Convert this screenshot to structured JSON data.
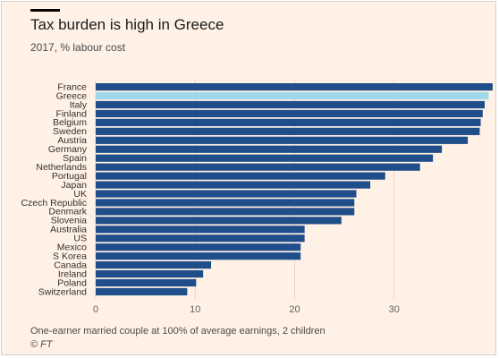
{
  "title": "Tax burden is high in Greece",
  "subtitle": "2017, % labour cost",
  "footnote": "One-earner married couple at 100% of average earnings, 2 children",
  "source": "© FT",
  "colors": {
    "background": "#fff1e5",
    "bar": "#1f4e8a",
    "highlight": "#9fd8e8",
    "gridline": "#e3d7cc"
  },
  "chart_data": {
    "type": "bar",
    "orientation": "horizontal",
    "title": "Tax burden is high in Greece",
    "subtitle": "2017, % labour cost",
    "highlight": "Greece",
    "categories": [
      "France",
      "Greece",
      "Italy",
      "Finland",
      "Belgium",
      "Sweden",
      "Austria",
      "Germany",
      "Spain",
      "Netherlands",
      "Portugal",
      "Japan",
      "UK",
      "Czech Republic",
      "Denmark",
      "Slovenia",
      "Australia",
      "US",
      "Mexico",
      "S Korea",
      "Canada",
      "Ireland",
      "Poland",
      "Switzerland"
    ],
    "values": [
      39.9,
      39.5,
      39.1,
      38.9,
      38.7,
      38.6,
      37.4,
      34.8,
      33.9,
      32.6,
      29.1,
      27.6,
      26.2,
      26.0,
      26.0,
      24.7,
      21.0,
      21.0,
      20.6,
      20.6,
      11.6,
      10.8,
      10.1,
      9.2
    ],
    "xlim": [
      0,
      40
    ],
    "xticks": [
      0,
      10,
      20,
      30
    ],
    "grid": true,
    "legend": "none"
  }
}
